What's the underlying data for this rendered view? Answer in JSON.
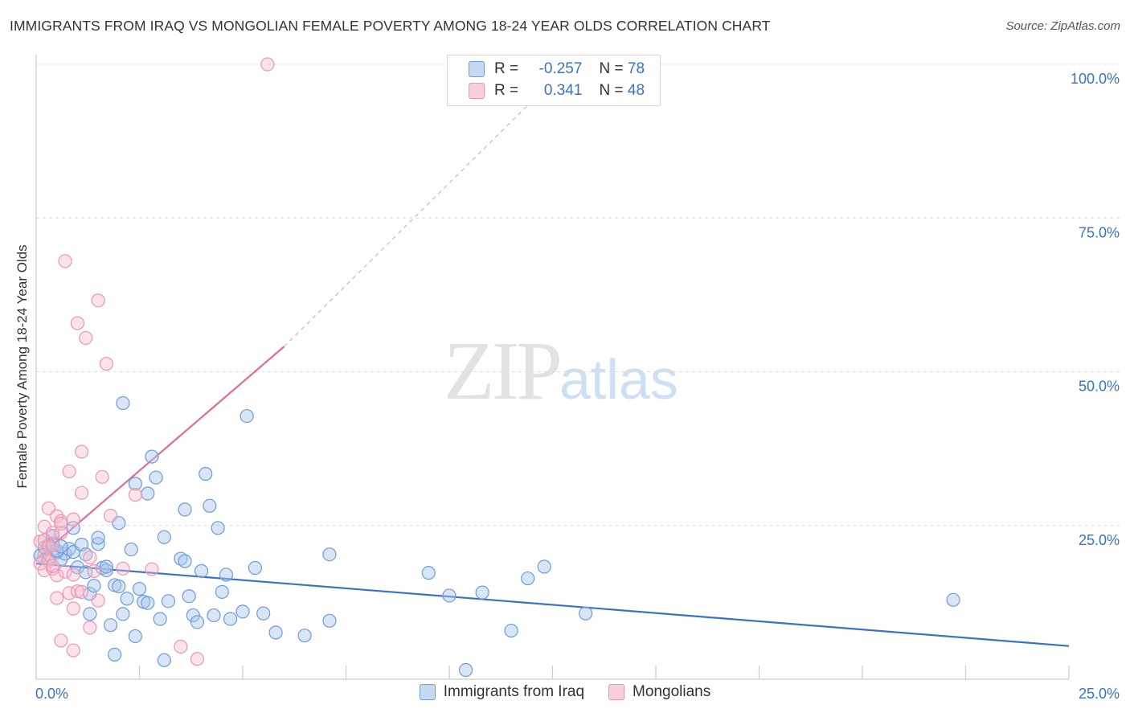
{
  "title": "IMMIGRANTS FROM IRAQ VS MONGOLIAN FEMALE POVERTY AMONG 18-24 YEAR OLDS CORRELATION CHART",
  "source": "Source: ZipAtlas.com",
  "watermark": {
    "zip": "ZIP",
    "atlas": "atlas"
  },
  "colors": {
    "blue": "#3a72c4",
    "blue_fill": "#a9c6ec",
    "pink": "#e26b98",
    "pink_fill": "#f5b8cc"
  },
  "legend": {
    "rows": [
      {
        "r_label": "R =",
        "r_value": "-0.257",
        "n_label": "N =",
        "n_value": "78"
      },
      {
        "r_label": "R =",
        "r_value": "0.341",
        "n_label": "N =",
        "n_value": "48"
      }
    ],
    "bottom": [
      "Immigrants from Iraq",
      "Mongolians"
    ]
  },
  "chart_data": {
    "type": "scatter",
    "title": "IMMIGRANTS FROM IRAQ VS MONGOLIAN FEMALE POVERTY AMONG 18-24 YEAR OLDS CORRELATION CHART",
    "xlabel": "",
    "ylabel": "Female Poverty Among 18-24 Year Olds",
    "xlim": [
      0,
      25
    ],
    "ylim": [
      0,
      100
    ],
    "x_tick_labels": [
      "0.0%",
      "25.0%"
    ],
    "y_ticks": [
      25,
      50,
      75,
      100
    ],
    "y_tick_labels": [
      "25.0%",
      "50.0%",
      "75.0%",
      "100.0%"
    ],
    "grid": true,
    "series": [
      {
        "name": "Immigrants from Iraq",
        "r": -0.257,
        "n": 78,
        "trend": {
          "x0": 0,
          "y0": 18.8,
          "x1": 25,
          "y1": 5.4,
          "style": "solid"
        },
        "points": [
          [
            0.1,
            20.1
          ],
          [
            0.2,
            21.4
          ],
          [
            0.3,
            19.6
          ],
          [
            0.4,
            22.1
          ],
          [
            0.5,
            20.6
          ],
          [
            0.6,
            19.5
          ],
          [
            0.7,
            20.4
          ],
          [
            0.8,
            21.2
          ],
          [
            0.9,
            20.7
          ],
          [
            0.4,
            23.3
          ],
          [
            0.5,
            20.9
          ],
          [
            0.6,
            21.6
          ],
          [
            0.9,
            24.6
          ],
          [
            1.0,
            18.2
          ],
          [
            1.1,
            21.9
          ],
          [
            1.2,
            17.4
          ],
          [
            1.3,
            13.9
          ],
          [
            1.4,
            15.2
          ],
          [
            1.5,
            22.0
          ],
          [
            1.5,
            23.0
          ],
          [
            1.6,
            18.1
          ],
          [
            1.7,
            17.7
          ],
          [
            1.8,
            8.8
          ],
          [
            1.9,
            15.3
          ],
          [
            2.0,
            25.4
          ],
          [
            2.1,
            10.6
          ],
          [
            2.2,
            13.1
          ],
          [
            2.3,
            21.1
          ],
          [
            2.4,
            7.0
          ],
          [
            2.5,
            14.7
          ],
          [
            2.6,
            12.6
          ],
          [
            2.7,
            12.4
          ],
          [
            2.8,
            36.2
          ],
          [
            2.9,
            32.8
          ],
          [
            3.0,
            9.8
          ],
          [
            3.1,
            23.1
          ],
          [
            3.2,
            12.7
          ],
          [
            3.5,
            19.6
          ],
          [
            3.6,
            19.2
          ],
          [
            3.7,
            13.5
          ],
          [
            3.8,
            10.4
          ],
          [
            3.9,
            9.3
          ],
          [
            4.0,
            17.6
          ],
          [
            4.1,
            33.4
          ],
          [
            4.2,
            28.2
          ],
          [
            4.3,
            10.4
          ],
          [
            4.4,
            24.6
          ],
          [
            4.5,
            14.2
          ],
          [
            4.6,
            17.0
          ],
          [
            4.7,
            9.8
          ],
          [
            5.0,
            11.0
          ],
          [
            5.1,
            42.8
          ],
          [
            5.3,
            18.1
          ],
          [
            5.5,
            10.7
          ],
          [
            5.8,
            7.6
          ],
          [
            6.5,
            7.1
          ],
          [
            7.1,
            9.5
          ],
          [
            7.1,
            20.3
          ],
          [
            9.5,
            17.3
          ],
          [
            10.0,
            13.6
          ],
          [
            10.4,
            1.5
          ],
          [
            10.8,
            14.1
          ],
          [
            11.5,
            7.9
          ],
          [
            11.9,
            16.4
          ],
          [
            12.3,
            18.3
          ],
          [
            13.3,
            10.7
          ],
          [
            22.2,
            12.9
          ],
          [
            2.1,
            44.9
          ],
          [
            2.4,
            31.8
          ],
          [
            2.7,
            30.2
          ],
          [
            3.6,
            27.6
          ],
          [
            1.7,
            18.3
          ],
          [
            1.3,
            10.6
          ],
          [
            1.9,
            4.0
          ],
          [
            3.1,
            3.1
          ],
          [
            2.0,
            15.1
          ],
          [
            0.3,
            21.8
          ],
          [
            1.2,
            20.3
          ]
        ]
      },
      {
        "name": "Mongolians",
        "r": 0.341,
        "n": 48,
        "trend": {
          "x0": 0,
          "y0": 19.5,
          "x1": 6.0,
          "y1": 54.1,
          "x_dash_end": 12.9,
          "y_dash_end": 100.0,
          "style": "solid+dashed"
        },
        "points": [
          [
            5.6,
            100.0
          ],
          [
            0.7,
            68.0
          ],
          [
            1.5,
            61.6
          ],
          [
            1.0,
            57.9
          ],
          [
            1.2,
            55.5
          ],
          [
            1.7,
            51.3
          ],
          [
            1.1,
            37.0
          ],
          [
            0.8,
            33.8
          ],
          [
            1.6,
            32.9
          ],
          [
            1.1,
            30.3
          ],
          [
            2.4,
            30.0
          ],
          [
            0.3,
            27.8
          ],
          [
            0.5,
            26.5
          ],
          [
            0.6,
            25.7
          ],
          [
            0.9,
            26.0
          ],
          [
            1.8,
            26.6
          ],
          [
            0.2,
            24.8
          ],
          [
            0.4,
            23.8
          ],
          [
            0.6,
            23.8
          ],
          [
            0.1,
            22.4
          ],
          [
            0.2,
            22.6
          ],
          [
            0.3,
            21.5
          ],
          [
            0.4,
            21.8
          ],
          [
            0.2,
            20.2
          ],
          [
            0.3,
            19.2
          ],
          [
            0.1,
            18.8
          ],
          [
            0.2,
            17.7
          ],
          [
            0.4,
            18.0
          ],
          [
            0.5,
            16.9
          ],
          [
            0.7,
            17.5
          ],
          [
            0.9,
            17.0
          ],
          [
            1.3,
            19.8
          ],
          [
            1.4,
            17.6
          ],
          [
            2.1,
            18.0
          ],
          [
            2.8,
            17.9
          ],
          [
            0.6,
            25.3
          ],
          [
            0.8,
            14.0
          ],
          [
            1.0,
            14.3
          ],
          [
            1.5,
            12.8
          ],
          [
            0.5,
            13.2
          ],
          [
            0.9,
            11.5
          ],
          [
            1.3,
            8.4
          ],
          [
            0.6,
            6.3
          ],
          [
            0.9,
            4.7
          ],
          [
            3.5,
            5.3
          ],
          [
            3.9,
            3.3
          ],
          [
            0.4,
            18.4
          ],
          [
            1.1,
            14.2
          ]
        ]
      }
    ]
  }
}
